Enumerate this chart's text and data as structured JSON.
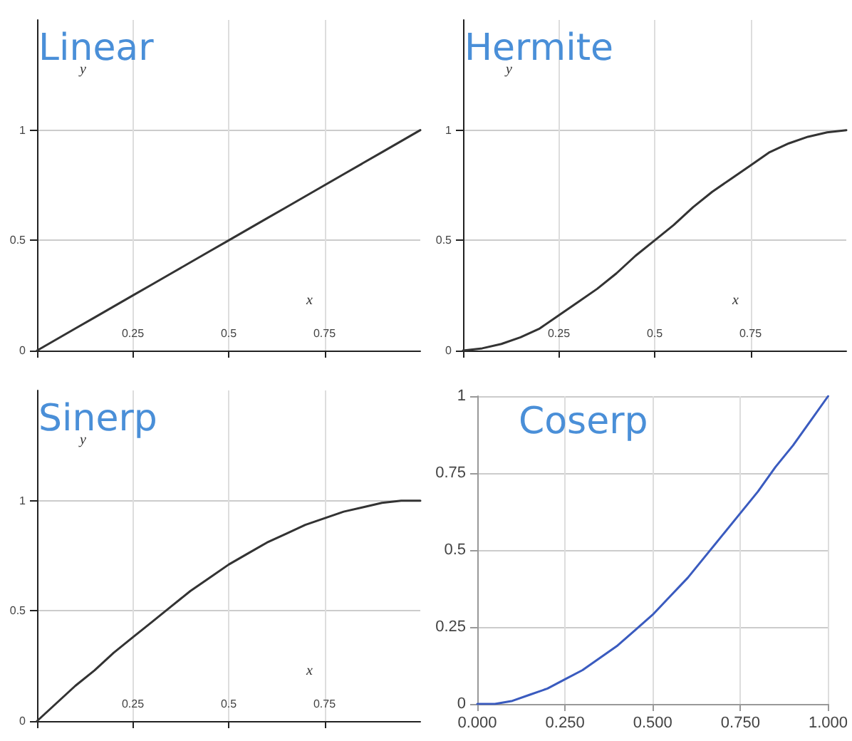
{
  "chart_data": [
    {
      "type": "line",
      "title": "Linear",
      "xlabel": "x",
      "ylabel": "y",
      "x": [
        0,
        0.05,
        0.1,
        0.15,
        0.2,
        0.25,
        0.3,
        0.35,
        0.4,
        0.45,
        0.5,
        0.55,
        0.6,
        0.65,
        0.7,
        0.75,
        0.8,
        0.85,
        0.9,
        0.95,
        1
      ],
      "series": [
        {
          "color": "#333333",
          "values": [
            0,
            0.05,
            0.1,
            0.15,
            0.2,
            0.25,
            0.3,
            0.35,
            0.4,
            0.45,
            0.5,
            0.55,
            0.6,
            0.65,
            0.7,
            0.75,
            0.8,
            0.85,
            0.9,
            0.95,
            1
          ]
        }
      ],
      "xlim": [
        0,
        1
      ],
      "ylim": [
        0,
        1.5
      ],
      "xticks": [
        {
          "value": 0,
          "label": null
        },
        0.25,
        0.5,
        0.75
      ],
      "yticks": [
        0,
        0.5,
        1
      ],
      "grid": true,
      "marker": "none",
      "line_style": "solid"
    },
    {
      "type": "line",
      "title": "Hermite",
      "xlabel": "x",
      "ylabel": "y",
      "x": [
        0,
        0.05,
        0.1,
        0.15,
        0.2,
        0.25,
        0.3,
        0.35,
        0.4,
        0.45,
        0.5,
        0.55,
        0.6,
        0.65,
        0.7,
        0.75,
        0.8,
        0.85,
        0.9,
        0.95,
        1
      ],
      "series": [
        {
          "color": "#333333",
          "values": [
            0,
            0.01,
            0.03,
            0.06,
            0.1,
            0.16,
            0.22,
            0.28,
            0.35,
            0.43,
            0.5,
            0.57,
            0.65,
            0.72,
            0.78,
            0.84,
            0.9,
            0.94,
            0.97,
            0.99,
            1
          ]
        }
      ],
      "xlim": [
        0,
        1
      ],
      "ylim": [
        0,
        1.5
      ],
      "xticks": [
        {
          "value": 0,
          "label": null
        },
        0.25,
        0.5,
        0.75
      ],
      "yticks": [
        0,
        0.5,
        1
      ],
      "grid": true,
      "marker": "none",
      "line_style": "solid"
    },
    {
      "type": "line",
      "title": "Sinerp",
      "xlabel": "x",
      "ylabel": "y",
      "x": [
        0,
        0.05,
        0.1,
        0.15,
        0.2,
        0.25,
        0.3,
        0.35,
        0.4,
        0.45,
        0.5,
        0.55,
        0.6,
        0.65,
        0.7,
        0.75,
        0.8,
        0.85,
        0.9,
        0.95,
        1
      ],
      "series": [
        {
          "color": "#333333",
          "values": [
            0,
            0.08,
            0.16,
            0.23,
            0.31,
            0.38,
            0.45,
            0.52,
            0.59,
            0.65,
            0.71,
            0.76,
            0.81,
            0.85,
            0.89,
            0.92,
            0.95,
            0.97,
            0.99,
            1,
            1
          ]
        }
      ],
      "xlim": [
        0,
        1
      ],
      "ylim": [
        0,
        1.5
      ],
      "xticks": [
        {
          "value": 0,
          "label": null
        },
        0.25,
        0.5,
        0.75
      ],
      "yticks": [
        0,
        0.5,
        1
      ],
      "grid": true,
      "marker": "none",
      "line_style": "solid"
    },
    {
      "type": "line",
      "title": "Coserp",
      "x": [
        0,
        0.05,
        0.1,
        0.15,
        0.2,
        0.25,
        0.3,
        0.35,
        0.4,
        0.45,
        0.5,
        0.55,
        0.6,
        0.65,
        0.7,
        0.75,
        0.8,
        0.85,
        0.9,
        0.95,
        1
      ],
      "series": [
        {
          "color": "#3a5bbf",
          "values": [
            0,
            0,
            0.01,
            0.03,
            0.05,
            0.08,
            0.11,
            0.15,
            0.19,
            0.24,
            0.29,
            0.35,
            0.41,
            0.48,
            0.55,
            0.62,
            0.69,
            0.77,
            0.84,
            0.92,
            1
          ]
        }
      ],
      "xlim": [
        0,
        1
      ],
      "ylim": [
        0,
        1
      ],
      "xticks": [
        {
          "value": 0,
          "label": "0.000"
        },
        {
          "value": 0.25,
          "label": "0.250"
        },
        {
          "value": 0.5,
          "label": "0.500"
        },
        {
          "value": 0.75,
          "label": "0.750"
        },
        {
          "value": 1,
          "label": "1.000"
        }
      ],
      "yticks": [
        0,
        0.25,
        0.5,
        0.75,
        1
      ],
      "grid": true,
      "marker": "none",
      "line_style": "solid"
    }
  ]
}
